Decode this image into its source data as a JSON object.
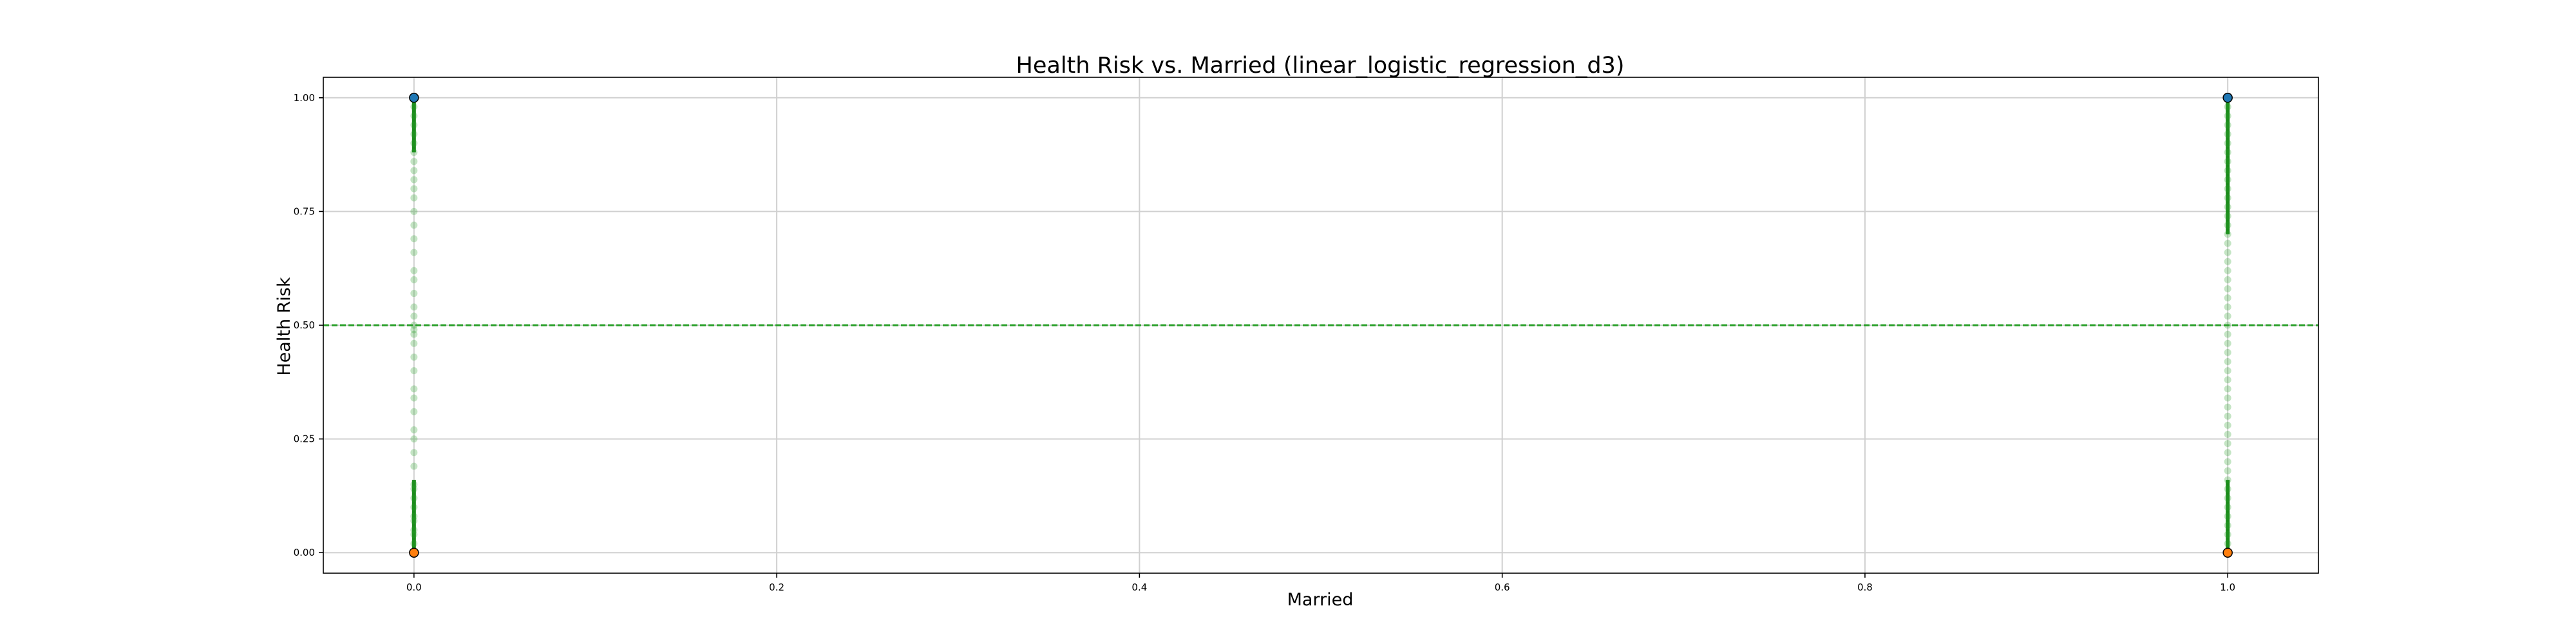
{
  "chart_data": {
    "type": "scatter",
    "title": "Health Risk vs. Married (linear_logistic_regression_d3)",
    "xlabel": "Married",
    "ylabel": "Health Risk",
    "xlim": [
      -0.05,
      1.05
    ],
    "ylim": [
      -0.045,
      1.045
    ],
    "grid": true,
    "x_ticks": [
      0.0,
      0.2,
      0.4,
      0.6,
      0.8,
      1.0
    ],
    "x_tick_labels": [
      "0.0",
      "0.2",
      "0.4",
      "0.6",
      "0.8",
      "1.0"
    ],
    "y_ticks": [
      0.0,
      0.25,
      0.5,
      0.75,
      1.0
    ],
    "y_tick_labels": [
      "0.00",
      "0.25",
      "0.50",
      "0.75",
      "1.00"
    ],
    "threshold": {
      "y": 0.5,
      "color": "#2ca02c",
      "style": "dashed"
    },
    "series": [
      {
        "kind": "predicted",
        "color": "#2ca02c",
        "points": [
          {
            "x": 0,
            "y_values": [
              0.0,
              0.02,
              0.04,
              0.05,
              0.07,
              0.08,
              0.1,
              0.12,
              0.14,
              0.15,
              0.19,
              0.22,
              0.25,
              0.27,
              0.31,
              0.34,
              0.36,
              0.4,
              0.43,
              0.46,
              0.48,
              0.49,
              0.5,
              0.52,
              0.54,
              0.57,
              0.6,
              0.62,
              0.66,
              0.69,
              0.72,
              0.75,
              0.78,
              0.8,
              0.82,
              0.84,
              0.86,
              0.88,
              0.9,
              0.92,
              0.94,
              0.96,
              0.98,
              1.0
            ]
          },
          {
            "x": 1,
            "y_values": [
              0.0,
              0.02,
              0.04,
              0.06,
              0.08,
              0.1,
              0.12,
              0.14,
              0.16,
              0.18,
              0.2,
              0.22,
              0.24,
              0.26,
              0.28,
              0.3,
              0.32,
              0.34,
              0.36,
              0.38,
              0.4,
              0.42,
              0.44,
              0.46,
              0.48,
              0.5,
              0.52,
              0.54,
              0.56,
              0.58,
              0.6,
              0.62,
              0.64,
              0.66,
              0.68,
              0.7,
              0.72,
              0.74,
              0.76,
              0.78,
              0.8,
              0.82,
              0.84,
              0.86,
              0.88,
              0.9,
              0.92,
              0.94,
              0.96,
              0.98,
              1.0
            ]
          }
        ],
        "dense_segments": [
          {
            "x": 0,
            "y_from": 0.0,
            "y_to": 0.16
          },
          {
            "x": 0,
            "y_from": 0.88,
            "y_to": 1.0
          },
          {
            "x": 1,
            "y_from": 0.0,
            "y_to": 0.16
          },
          {
            "x": 1,
            "y_from": 0.7,
            "y_to": 1.0
          }
        ]
      },
      {
        "kind": "actual",
        "points": [
          {
            "x": 0,
            "y": 1,
            "color": "#1f77b4"
          },
          {
            "x": 0,
            "y": 0,
            "color": "#ff7f0e"
          },
          {
            "x": 1,
            "y": 1,
            "color": "#1f77b4"
          },
          {
            "x": 1,
            "y": 0,
            "color": "#ff7f0e"
          }
        ]
      }
    ]
  }
}
